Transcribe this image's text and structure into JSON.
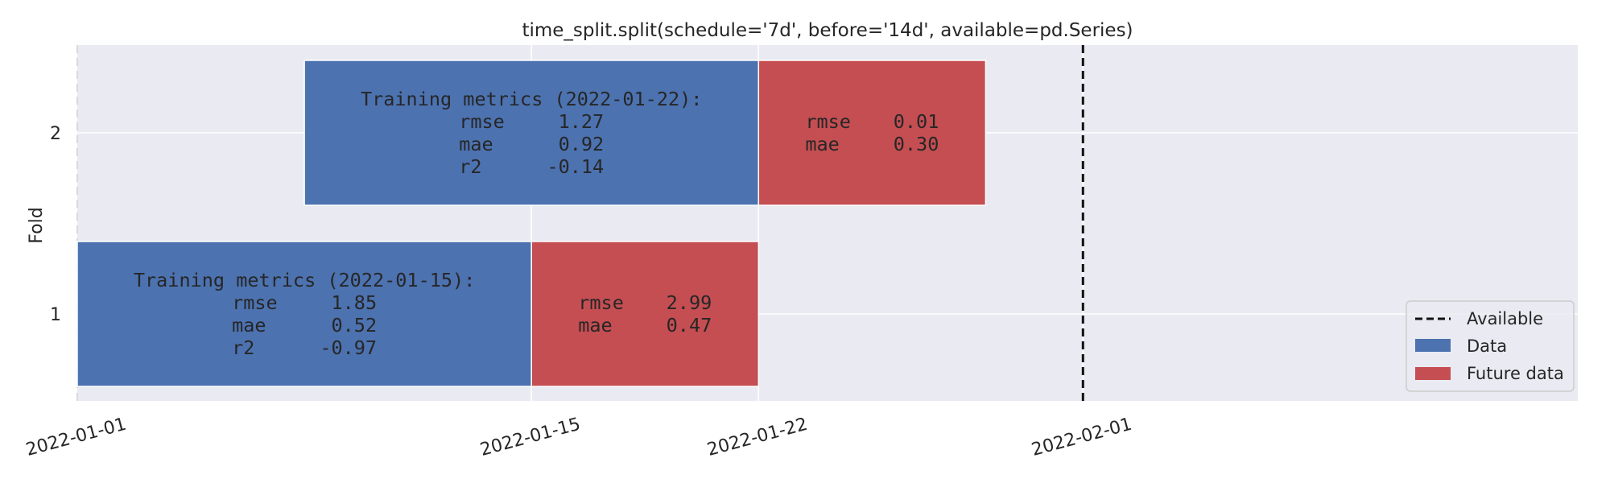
{
  "chart_data": {
    "type": "bar",
    "orientation": "horizontal-timeline",
    "title": "time_split.split(schedule='7d', before='14d', available=pd.Series)",
    "xlabel": "",
    "ylabel": "Fold",
    "xlim": [
      "2022-01-01",
      "2022-02-02"
    ],
    "x_ticks": [
      "2022-01-01",
      "2022-01-15",
      "2022-01-22",
      "2022-02-01"
    ],
    "y_ticks": [
      "1",
      "2"
    ],
    "grid": true,
    "legend_position": "bottom-right",
    "colors": {
      "data": "#4c72b0",
      "future": "#c44e52",
      "available": "#111111",
      "background": "#eaeaf2"
    },
    "available": "2022-02-01",
    "legend": [
      {
        "label": "Available",
        "style": "dashed-line"
      },
      {
        "label": "Data",
        "style": "patch"
      },
      {
        "label": "Future data",
        "style": "patch"
      }
    ],
    "folds": [
      {
        "fold": "1",
        "data": {
          "start": "2022-01-01",
          "end": "2022-01-15"
        },
        "future": {
          "start": "2022-01-15",
          "end": "2022-01-22"
        },
        "training_header": "Training metrics (2022-01-15):",
        "training_metrics": [
          {
            "name": "rmse",
            "value": "1.85"
          },
          {
            "name": "mae",
            "value": "0.52"
          },
          {
            "name": "r2",
            "value": "-0.97"
          }
        ],
        "future_metrics": [
          {
            "name": "rmse",
            "value": "2.99"
          },
          {
            "name": "mae",
            "value": "0.47"
          }
        ]
      },
      {
        "fold": "2",
        "data": {
          "start": "2022-01-08",
          "end": "2022-01-22"
        },
        "future": {
          "start": "2022-01-22",
          "end": "2022-01-29"
        },
        "training_header": "Training metrics (2022-01-22):",
        "training_metrics": [
          {
            "name": "rmse",
            "value": "1.27"
          },
          {
            "name": "mae",
            "value": "0.92"
          },
          {
            "name": "r2",
            "value": "-0.14"
          }
        ],
        "future_metrics": [
          {
            "name": "rmse",
            "value": "0.01"
          },
          {
            "name": "mae",
            "value": "0.30"
          }
        ]
      }
    ]
  }
}
